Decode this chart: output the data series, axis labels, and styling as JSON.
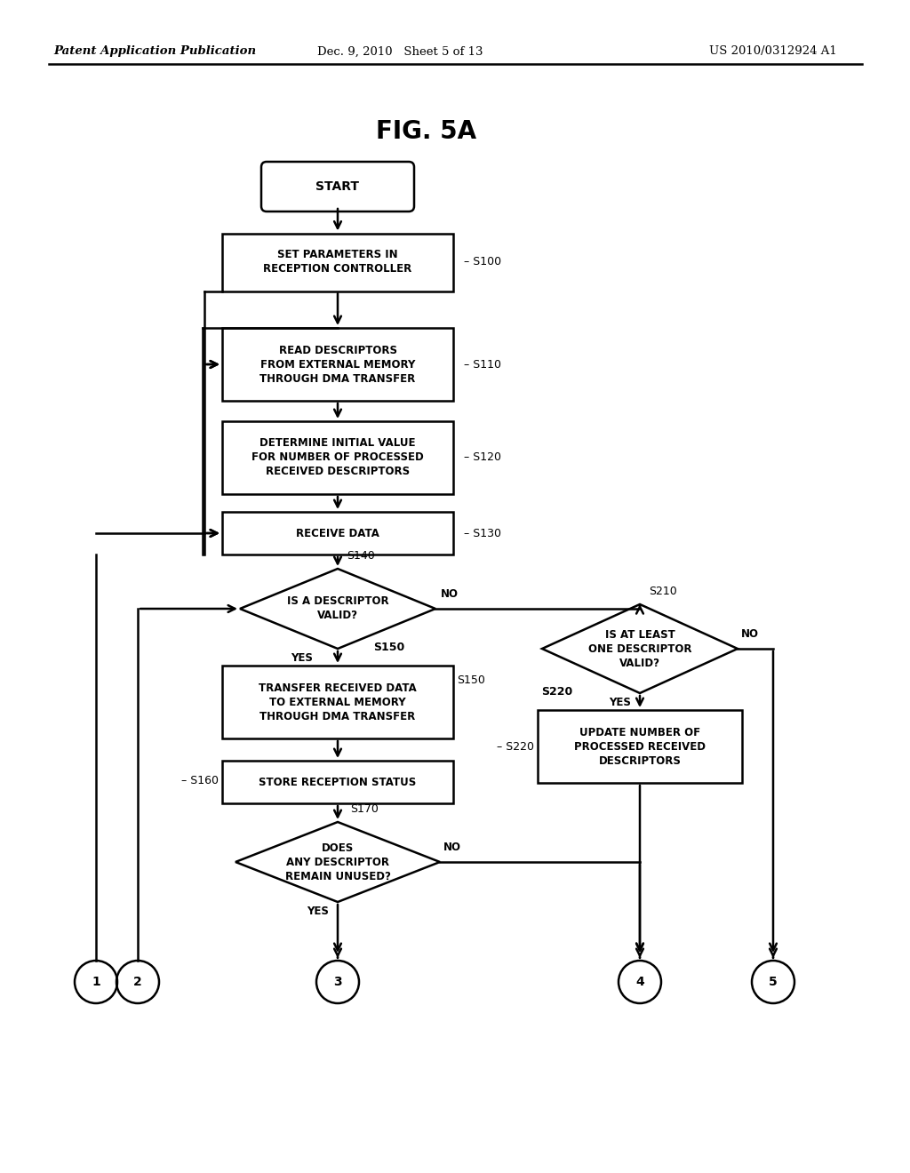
{
  "bg_color": "#ffffff",
  "header_left": "Patent Application Publication",
  "header_mid": "Dec. 9, 2010   Sheet 5 of 13",
  "header_right": "US 2010/0312924 A1",
  "fig_title": "FIG. 5A",
  "start_label": "START",
  "s100_label": "SET PARAMETERS IN\nRECEPTION CONTROLLER",
  "s100_tag": "S100",
  "s110_label": "READ DESCRIPTORS\nFROM EXTERNAL MEMORY\nTHROUGH DMA TRANSFER",
  "s110_tag": "S110",
  "s120_label": "DETERMINE INITIAL VALUE\nFOR NUMBER OF PROCESSED\nRECEIVED DESCRIPTORS",
  "s120_tag": "S120",
  "s130_label": "RECEIVE DATA",
  "s130_tag": "S130",
  "s140_label": "IS A DESCRIPTOR\nVALID?",
  "s140_tag": "S140",
  "s150_label": "TRANSFER RECEIVED DATA\nTO EXTERNAL MEMORY\nTHROUGH DMA TRANSFER",
  "s150_tag": "S150",
  "s160_label": "STORE RECEPTION STATUS",
  "s160_tag": "S160",
  "s170_label": "DOES\nANY DESCRIPTOR\nREMAIN UNUSED?",
  "s170_tag": "S170",
  "s210_label": "IS AT LEAST\nONE DESCRIPTOR\nVALID?",
  "s210_tag": "S210",
  "s220_label": "UPDATE NUMBER OF\nPROCESSED RECEIVED\nDESCRIPTORS",
  "s220_tag": "S220",
  "yes_label": "YES",
  "no_label": "NO",
  "connectors": [
    "1",
    "2",
    "3",
    "4",
    "5"
  ]
}
